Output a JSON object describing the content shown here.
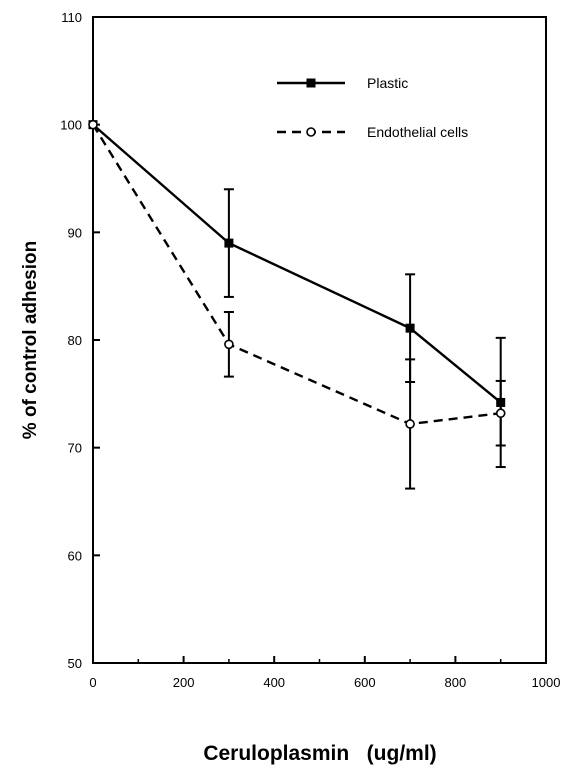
{
  "chart_data": {
    "type": "line",
    "title": "",
    "xlabel": "Ceruloplasmin   (ug/ml)",
    "ylabel": "% of control adhesion",
    "xlim": [
      0,
      1000
    ],
    "ylim": [
      50,
      110
    ],
    "x_ticks": [
      0,
      200,
      400,
      600,
      800,
      1000
    ],
    "y_ticks": [
      50,
      60,
      70,
      80,
      90,
      100,
      110
    ],
    "x_minor_ticks": [
      100,
      300,
      500,
      700,
      900
    ],
    "grid": false,
    "legend_position": "top-right",
    "series": [
      {
        "name": "Plastic",
        "line_style": "solid",
        "marker": "filled-square",
        "color": "#000000",
        "x": [
          0,
          300,
          700,
          900
        ],
        "y": [
          100,
          89,
          81.1,
          74.2
        ],
        "error": [
          0,
          5,
          5,
          6
        ]
      },
      {
        "name": "Endothelial cells",
        "line_style": "dashed",
        "marker": "open-circle",
        "color": "#000000",
        "x": [
          0,
          300,
          700,
          900
        ],
        "y": [
          100,
          79.6,
          72.2,
          73.2
        ],
        "error": [
          0,
          3,
          6,
          3
        ]
      }
    ]
  }
}
